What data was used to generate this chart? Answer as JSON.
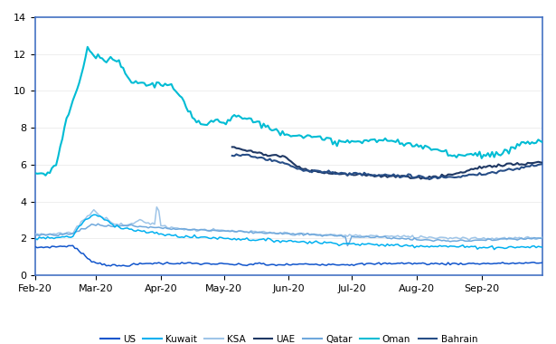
{
  "background_color": "#ffffff",
  "ylim": [
    0,
    14
  ],
  "yticks": [
    0,
    2,
    4,
    6,
    8,
    10,
    12,
    14
  ],
  "legend_colors": {
    "US": "#1155cc",
    "Kuwait": "#00b0f0",
    "KSA": "#9fc5e8",
    "UAE": "#1f3864",
    "Qatar": "#6fa8dc",
    "Oman": "#00bcd4",
    "Bahrain": "#274e87"
  }
}
